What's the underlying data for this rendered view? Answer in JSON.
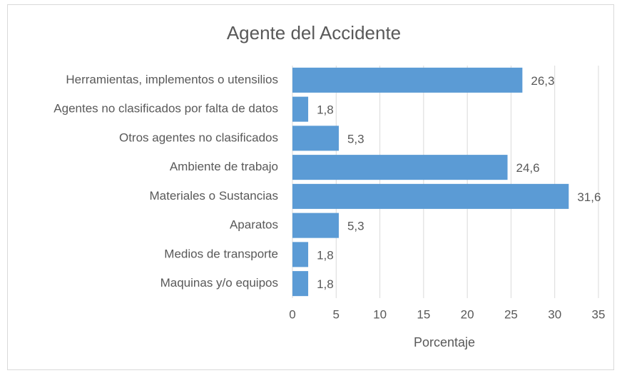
{
  "chart_data": {
    "type": "bar",
    "orientation": "horizontal",
    "title": "Agente del Accidente",
    "x_label": "Porcentaje",
    "categories": [
      "Herramientas, implementos o utensilios",
      "Agentes no clasificados por falta de datos",
      "Otros agentes no clasificados",
      "Ambiente de trabajo",
      "Materiales o Sustancias",
      "Aparatos",
      "Medios de transporte",
      "Maquinas y/o equipos"
    ],
    "values": [
      26.3,
      1.8,
      5.3,
      24.6,
      31.6,
      5.3,
      1.8,
      1.8
    ],
    "value_labels": [
      "26,3",
      "1,8",
      "5,3",
      "24,6",
      "31,6",
      "5,3",
      "1,8",
      "1,8"
    ],
    "color": "#5b9bd5",
    "xlim": [
      0,
      35
    ],
    "xticks": [
      0,
      5,
      10,
      15,
      20,
      25,
      30,
      35
    ],
    "grid": true
  }
}
